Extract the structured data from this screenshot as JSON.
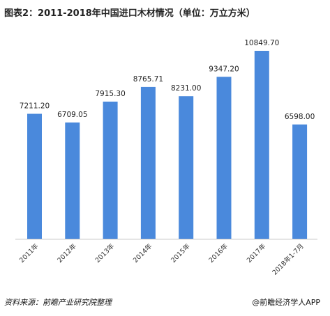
{
  "header": {
    "title": "图表2：2011-2018年中国进口木材情况（单位：万立方米）"
  },
  "footer": {
    "source": "资料来源：前瞻产业研究院整理",
    "brand": "@前瞻经济学人APP"
  },
  "colors": {
    "bar": "#4a89dc",
    "text": "#222222",
    "axis": "#bfbfbf"
  },
  "chart_data": {
    "type": "bar",
    "title": "图表2：2011-2018年中国进口木材情况（单位：万立方米）",
    "xlabel": "",
    "ylabel": "",
    "categories": [
      "2011年",
      "2012年",
      "2013年",
      "2014年",
      "2015年",
      "2016年",
      "2017年",
      "2018年1-7月"
    ],
    "values": [
      7211.2,
      6709.05,
      7915.3,
      8765.71,
      8231.0,
      9347.2,
      10849.7,
      6598.0
    ],
    "data_labels": [
      "7211.20",
      "6709.05",
      "7915.30",
      "8765.71",
      "8231.00",
      "9347.20",
      "10849.70",
      "6598.00"
    ],
    "ylim": [
      0,
      10849.7
    ],
    "grid": false,
    "legend": "none"
  }
}
